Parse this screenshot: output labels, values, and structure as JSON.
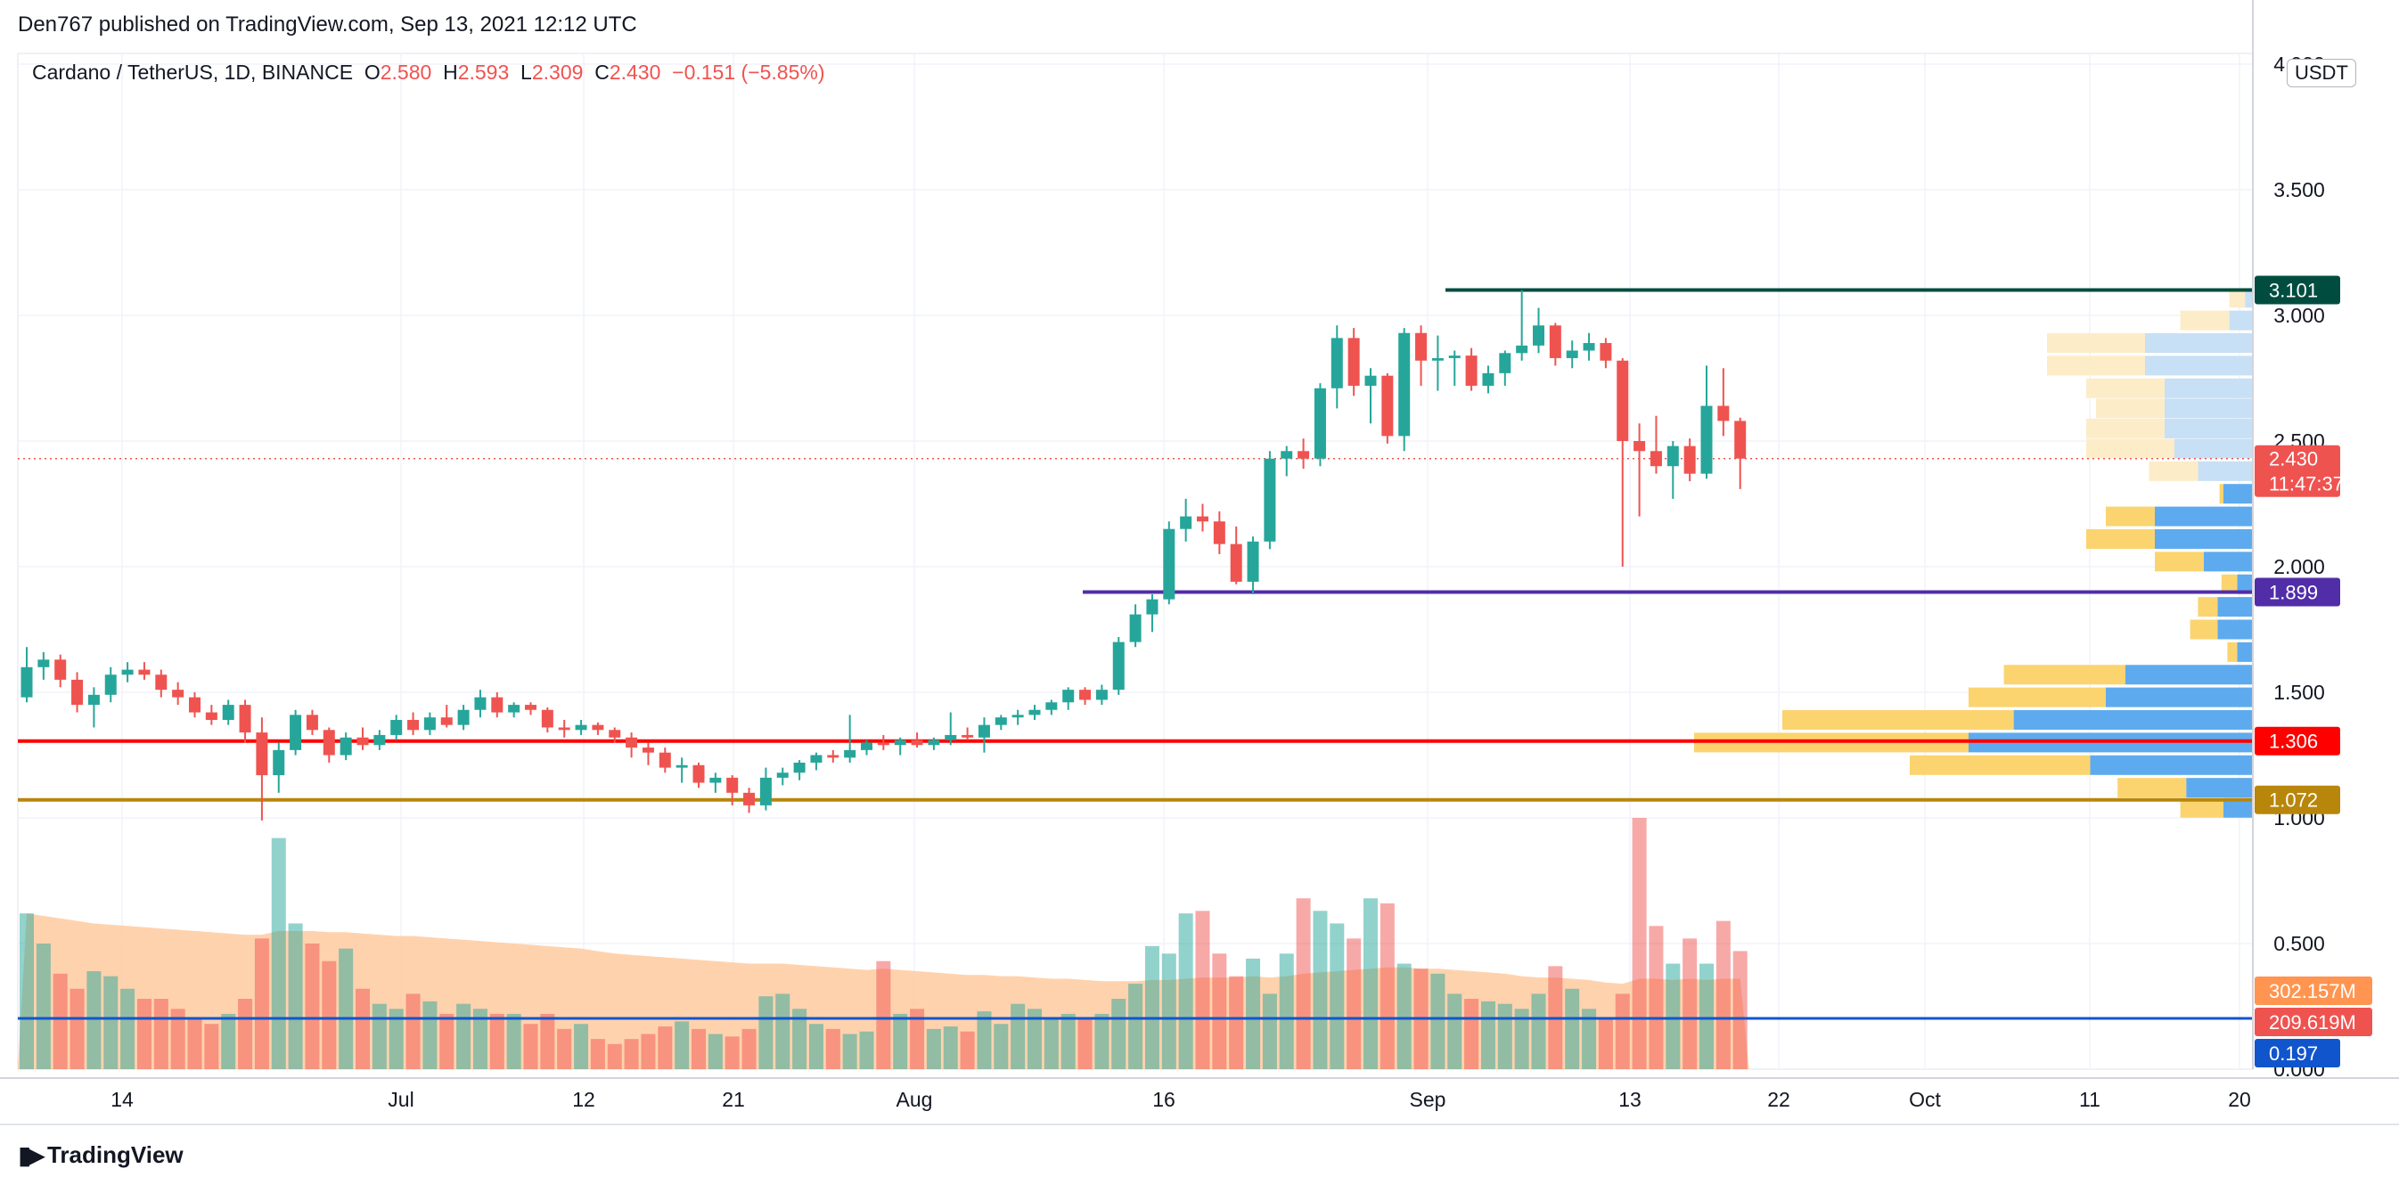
{
  "header": {
    "published": "Den767 published on TradingView.com, Sep 13, 2021 12:12 UTC"
  },
  "legend": {
    "symbol": "Cardano / TetherUS, 1D, BINANCE",
    "o_label": "O",
    "o": "2.580",
    "h_label": "H",
    "h": "2.593",
    "l_label": "L",
    "l": "2.309",
    "c_label": "C",
    "c": "2.430",
    "change": "−0.151 (−5.85%)"
  },
  "currency": "USDT",
  "footer": {
    "brand": "TradingView",
    "logo_icon": "tradingview-logo-icon"
  },
  "chart_data": {
    "type": "candlestick",
    "y_axis": {
      "ticks": [
        "4.000",
        "3.500",
        "3.000",
        "2.500",
        "2.000",
        "1.500",
        "1.000",
        "0.500",
        "0.000"
      ],
      "ylim": [
        0,
        4.0
      ]
    },
    "x_axis": {
      "ticks": [
        "14",
        "Jul",
        "12",
        "21",
        "Aug",
        "16",
        "Sep",
        "13",
        "22",
        "Oct",
        "11",
        "20"
      ]
    },
    "price_labels": [
      {
        "text": "3.101",
        "color": "#004d40"
      },
      {
        "text": "2.430",
        "sub": "11:47:37",
        "color": "#ef5350"
      },
      {
        "text": "1.899",
        "color": "#512da8"
      },
      {
        "text": "1.306",
        "color": "#ff0000"
      },
      {
        "text": "1.072",
        "color": "#b8860b"
      },
      {
        "text": "302.157M",
        "color": "#ff9550"
      },
      {
        "text": "209.619M",
        "color": "#ef5350"
      },
      {
        "text": "0.197",
        "color": "#1155cc"
      }
    ],
    "levels": [
      {
        "value": 3.101,
        "color": "#004d40",
        "start": "Sep 2"
      },
      {
        "value": 1.899,
        "color": "#512da8",
        "start": "Aug 10"
      },
      {
        "value": 1.306,
        "color": "#ff0000"
      },
      {
        "value": 1.072,
        "color": "#b8860b"
      },
      {
        "value": 0.197,
        "color": "#1155cc"
      }
    ],
    "last_price": 2.43,
    "candles": [
      {
        "o": 1.48,
        "h": 1.68,
        "l": 1.46,
        "c": 1.6
      },
      {
        "o": 1.6,
        "h": 1.66,
        "l": 1.55,
        "c": 1.63
      },
      {
        "o": 1.63,
        "h": 1.65,
        "l": 1.52,
        "c": 1.55
      },
      {
        "o": 1.55,
        "h": 1.58,
        "l": 1.42,
        "c": 1.45
      },
      {
        "o": 1.45,
        "h": 1.52,
        "l": 1.36,
        "c": 1.49
      },
      {
        "o": 1.49,
        "h": 1.6,
        "l": 1.46,
        "c": 1.57
      },
      {
        "o": 1.57,
        "h": 1.62,
        "l": 1.54,
        "c": 1.59
      },
      {
        "o": 1.59,
        "h": 1.62,
        "l": 1.55,
        "c": 1.57
      },
      {
        "o": 1.57,
        "h": 1.59,
        "l": 1.48,
        "c": 1.51
      },
      {
        "o": 1.51,
        "h": 1.54,
        "l": 1.45,
        "c": 1.48
      },
      {
        "o": 1.48,
        "h": 1.5,
        "l": 1.4,
        "c": 1.42
      },
      {
        "o": 1.42,
        "h": 1.45,
        "l": 1.37,
        "c": 1.39
      },
      {
        "o": 1.39,
        "h": 1.47,
        "l": 1.37,
        "c": 1.45
      },
      {
        "o": 1.45,
        "h": 1.47,
        "l": 1.3,
        "c": 1.34
      },
      {
        "o": 1.34,
        "h": 1.4,
        "l": 0.99,
        "c": 1.17
      },
      {
        "o": 1.17,
        "h": 1.3,
        "l": 1.1,
        "c": 1.27
      },
      {
        "o": 1.27,
        "h": 1.43,
        "l": 1.25,
        "c": 1.41
      },
      {
        "o": 1.41,
        "h": 1.43,
        "l": 1.33,
        "c": 1.35
      },
      {
        "o": 1.35,
        "h": 1.36,
        "l": 1.22,
        "c": 1.25
      },
      {
        "o": 1.25,
        "h": 1.34,
        "l": 1.23,
        "c": 1.32
      },
      {
        "o": 1.32,
        "h": 1.36,
        "l": 1.27,
        "c": 1.29
      },
      {
        "o": 1.29,
        "h": 1.35,
        "l": 1.27,
        "c": 1.33
      },
      {
        "o": 1.33,
        "h": 1.41,
        "l": 1.31,
        "c": 1.39
      },
      {
        "o": 1.39,
        "h": 1.42,
        "l": 1.33,
        "c": 1.35
      },
      {
        "o": 1.35,
        "h": 1.42,
        "l": 1.33,
        "c": 1.4
      },
      {
        "o": 1.4,
        "h": 1.45,
        "l": 1.36,
        "c": 1.37
      },
      {
        "o": 1.37,
        "h": 1.45,
        "l": 1.35,
        "c": 1.43
      },
      {
        "o": 1.43,
        "h": 1.51,
        "l": 1.4,
        "c": 1.48
      },
      {
        "o": 1.48,
        "h": 1.5,
        "l": 1.4,
        "c": 1.42
      },
      {
        "o": 1.42,
        "h": 1.46,
        "l": 1.4,
        "c": 1.45
      },
      {
        "o": 1.45,
        "h": 1.46,
        "l": 1.41,
        "c": 1.43
      },
      {
        "o": 1.43,
        "h": 1.44,
        "l": 1.34,
        "c": 1.36
      },
      {
        "o": 1.36,
        "h": 1.39,
        "l": 1.32,
        "c": 1.35
      },
      {
        "o": 1.35,
        "h": 1.39,
        "l": 1.33,
        "c": 1.37
      },
      {
        "o": 1.37,
        "h": 1.38,
        "l": 1.33,
        "c": 1.35
      },
      {
        "o": 1.35,
        "h": 1.36,
        "l": 1.3,
        "c": 1.32
      },
      {
        "o": 1.32,
        "h": 1.34,
        "l": 1.24,
        "c": 1.28
      },
      {
        "o": 1.28,
        "h": 1.3,
        "l": 1.21,
        "c": 1.26
      },
      {
        "o": 1.26,
        "h": 1.28,
        "l": 1.18,
        "c": 1.2
      },
      {
        "o": 1.2,
        "h": 1.24,
        "l": 1.14,
        "c": 1.21
      },
      {
        "o": 1.21,
        "h": 1.22,
        "l": 1.12,
        "c": 1.14
      },
      {
        "o": 1.14,
        "h": 1.18,
        "l": 1.1,
        "c": 1.16
      },
      {
        "o": 1.16,
        "h": 1.17,
        "l": 1.05,
        "c": 1.1
      },
      {
        "o": 1.1,
        "h": 1.12,
        "l": 1.02,
        "c": 1.05
      },
      {
        "o": 1.05,
        "h": 1.2,
        "l": 1.03,
        "c": 1.16
      },
      {
        "o": 1.16,
        "h": 1.2,
        "l": 1.13,
        "c": 1.18
      },
      {
        "o": 1.18,
        "h": 1.23,
        "l": 1.15,
        "c": 1.22
      },
      {
        "o": 1.22,
        "h": 1.26,
        "l": 1.19,
        "c": 1.25
      },
      {
        "o": 1.25,
        "h": 1.27,
        "l": 1.22,
        "c": 1.24
      },
      {
        "o": 1.24,
        "h": 1.41,
        "l": 1.22,
        "c": 1.27
      },
      {
        "o": 1.27,
        "h": 1.31,
        "l": 1.25,
        "c": 1.3
      },
      {
        "o": 1.3,
        "h": 1.33,
        "l": 1.27,
        "c": 1.29
      },
      {
        "o": 1.29,
        "h": 1.32,
        "l": 1.25,
        "c": 1.31
      },
      {
        "o": 1.31,
        "h": 1.34,
        "l": 1.28,
        "c": 1.29
      },
      {
        "o": 1.29,
        "h": 1.32,
        "l": 1.27,
        "c": 1.31
      },
      {
        "o": 1.31,
        "h": 1.42,
        "l": 1.29,
        "c": 1.33
      },
      {
        "o": 1.33,
        "h": 1.36,
        "l": 1.31,
        "c": 1.32
      },
      {
        "o": 1.32,
        "h": 1.4,
        "l": 1.26,
        "c": 1.37
      },
      {
        "o": 1.37,
        "h": 1.41,
        "l": 1.35,
        "c": 1.4
      },
      {
        "o": 1.4,
        "h": 1.43,
        "l": 1.37,
        "c": 1.41
      },
      {
        "o": 1.41,
        "h": 1.45,
        "l": 1.39,
        "c": 1.43
      },
      {
        "o": 1.43,
        "h": 1.47,
        "l": 1.41,
        "c": 1.46
      },
      {
        "o": 1.46,
        "h": 1.52,
        "l": 1.43,
        "c": 1.51
      },
      {
        "o": 1.51,
        "h": 1.52,
        "l": 1.45,
        "c": 1.47
      },
      {
        "o": 1.47,
        "h": 1.53,
        "l": 1.45,
        "c": 1.51
      },
      {
        "o": 1.51,
        "h": 1.72,
        "l": 1.49,
        "c": 1.7
      },
      {
        "o": 1.7,
        "h": 1.85,
        "l": 1.68,
        "c": 1.81
      },
      {
        "o": 1.81,
        "h": 1.89,
        "l": 1.74,
        "c": 1.87
      },
      {
        "o": 1.87,
        "h": 2.18,
        "l": 1.85,
        "c": 2.15
      },
      {
        "o": 2.15,
        "h": 2.27,
        "l": 2.1,
        "c": 2.2
      },
      {
        "o": 2.2,
        "h": 2.25,
        "l": 2.14,
        "c": 2.18
      },
      {
        "o": 2.18,
        "h": 2.22,
        "l": 2.05,
        "c": 2.09
      },
      {
        "o": 2.09,
        "h": 2.16,
        "l": 1.93,
        "c": 1.94
      },
      {
        "o": 1.94,
        "h": 2.12,
        "l": 1.89,
        "c": 2.1
      },
      {
        "o": 2.1,
        "h": 2.46,
        "l": 2.07,
        "c": 2.43
      },
      {
        "o": 2.43,
        "h": 2.48,
        "l": 2.36,
        "c": 2.46
      },
      {
        "o": 2.46,
        "h": 2.51,
        "l": 2.39,
        "c": 2.43
      },
      {
        "o": 2.43,
        "h": 2.73,
        "l": 2.4,
        "c": 2.71
      },
      {
        "o": 2.71,
        "h": 2.96,
        "l": 2.63,
        "c": 2.91
      },
      {
        "o": 2.91,
        "h": 2.95,
        "l": 2.68,
        "c": 2.72
      },
      {
        "o": 2.72,
        "h": 2.79,
        "l": 2.57,
        "c": 2.76
      },
      {
        "o": 2.76,
        "h": 2.77,
        "l": 2.49,
        "c": 2.52
      },
      {
        "o": 2.52,
        "h": 2.95,
        "l": 2.46,
        "c": 2.93
      },
      {
        "o": 2.93,
        "h": 2.96,
        "l": 2.72,
        "c": 2.82
      },
      {
        "o": 2.82,
        "h": 2.92,
        "l": 2.7,
        "c": 2.83
      },
      {
        "o": 2.83,
        "h": 2.86,
        "l": 2.72,
        "c": 2.84
      },
      {
        "o": 2.84,
        "h": 2.87,
        "l": 2.7,
        "c": 2.72
      },
      {
        "o": 2.72,
        "h": 2.8,
        "l": 2.69,
        "c": 2.77
      },
      {
        "o": 2.77,
        "h": 2.86,
        "l": 2.72,
        "c": 2.85
      },
      {
        "o": 2.85,
        "h": 3.1,
        "l": 2.82,
        "c": 2.88
      },
      {
        "o": 2.88,
        "h": 3.03,
        "l": 2.85,
        "c": 2.96
      },
      {
        "o": 2.96,
        "h": 2.97,
        "l": 2.8,
        "c": 2.83
      },
      {
        "o": 2.83,
        "h": 2.9,
        "l": 2.79,
        "c": 2.86
      },
      {
        "o": 2.86,
        "h": 2.93,
        "l": 2.82,
        "c": 2.89
      },
      {
        "o": 2.89,
        "h": 2.91,
        "l": 2.79,
        "c": 2.82
      },
      {
        "o": 2.82,
        "h": 2.83,
        "l": 2.0,
        "c": 2.5
      },
      {
        "o": 2.5,
        "h": 2.57,
        "l": 2.2,
        "c": 2.46
      },
      {
        "o": 2.46,
        "h": 2.6,
        "l": 2.37,
        "c": 2.4
      },
      {
        "o": 2.4,
        "h": 2.5,
        "l": 2.27,
        "c": 2.48
      },
      {
        "o": 2.48,
        "h": 2.51,
        "l": 2.34,
        "c": 2.37
      },
      {
        "o": 2.37,
        "h": 2.8,
        "l": 2.35,
        "c": 2.64
      },
      {
        "o": 2.64,
        "h": 2.79,
        "l": 2.52,
        "c": 2.58
      },
      {
        "o": 2.58,
        "h": 2.593,
        "l": 2.309,
        "c": 2.43
      }
    ],
    "volume": {
      "ylim": [
        0,
        1.0
      ],
      "values": [
        0.62,
        0.5,
        0.38,
        0.32,
        0.39,
        0.37,
        0.32,
        0.28,
        0.28,
        0.24,
        0.2,
        0.18,
        0.22,
        0.28,
        0.52,
        0.92,
        0.58,
        0.5,
        0.43,
        0.48,
        0.32,
        0.26,
        0.24,
        0.3,
        0.27,
        0.22,
        0.26,
        0.24,
        0.22,
        0.22,
        0.18,
        0.22,
        0.16,
        0.18,
        0.12,
        0.1,
        0.12,
        0.14,
        0.17,
        0.19,
        0.16,
        0.14,
        0.13,
        0.16,
        0.29,
        0.3,
        0.24,
        0.18,
        0.16,
        0.14,
        0.15,
        0.43,
        0.22,
        0.24,
        0.16,
        0.17,
        0.15,
        0.23,
        0.18,
        0.26,
        0.24,
        0.2,
        0.22,
        0.2,
        0.22,
        0.28,
        0.34,
        0.49,
        0.46,
        0.62,
        0.63,
        0.46,
        0.37,
        0.44,
        0.3,
        0.46,
        0.68,
        0.63,
        0.58,
        0.52,
        0.68,
        0.66,
        0.42,
        0.4,
        0.38,
        0.3,
        0.28,
        0.27,
        0.26,
        0.24,
        0.3,
        0.41,
        0.32,
        0.24,
        0.2,
        0.3,
        1.0,
        0.57,
        0.42,
        0.52,
        0.42,
        0.59,
        0.47
      ],
      "ma": [
        0.62,
        0.61,
        0.6,
        0.59,
        0.58,
        0.575,
        0.57,
        0.565,
        0.56,
        0.555,
        0.55,
        0.545,
        0.54,
        0.535,
        0.535,
        0.55,
        0.55,
        0.55,
        0.545,
        0.545,
        0.54,
        0.535,
        0.53,
        0.53,
        0.525,
        0.52,
        0.515,
        0.51,
        0.505,
        0.5,
        0.495,
        0.49,
        0.485,
        0.48,
        0.47,
        0.46,
        0.455,
        0.45,
        0.445,
        0.44,
        0.435,
        0.43,
        0.425,
        0.42,
        0.42,
        0.42,
        0.415,
        0.41,
        0.405,
        0.4,
        0.395,
        0.4,
        0.395,
        0.39,
        0.385,
        0.38,
        0.375,
        0.375,
        0.37,
        0.37,
        0.365,
        0.36,
        0.36,
        0.355,
        0.35,
        0.35,
        0.35,
        0.355,
        0.355,
        0.36,
        0.365,
        0.365,
        0.365,
        0.37,
        0.365,
        0.37,
        0.38,
        0.385,
        0.39,
        0.395,
        0.4,
        0.405,
        0.405,
        0.4,
        0.4,
        0.395,
        0.39,
        0.385,
        0.38,
        0.37,
        0.365,
        0.365,
        0.36,
        0.355,
        0.345,
        0.34,
        0.36,
        0.36,
        0.355,
        0.36,
        0.355,
        0.36,
        0.36
      ]
    },
    "volume_profile": [
      {
        "price": 3.07,
        "up": 0.08,
        "down": 0.04
      },
      {
        "price": 2.98,
        "up": 0.25,
        "down": 0.12
      },
      {
        "price": 2.89,
        "up": 0.5,
        "down": 0.55
      },
      {
        "price": 2.8,
        "up": 0.5,
        "down": 0.55
      },
      {
        "price": 2.71,
        "up": 0.4,
        "down": 0.45
      },
      {
        "price": 2.63,
        "up": 0.35,
        "down": 0.45
      },
      {
        "price": 2.55,
        "up": 0.4,
        "down": 0.45
      },
      {
        "price": 2.47,
        "up": 0.45,
        "down": 0.4
      },
      {
        "price": 2.38,
        "up": 0.25,
        "down": 0.28
      },
      {
        "price": 2.29,
        "up": 0.02,
        "down": 0.15
      },
      {
        "price": 2.2,
        "up": 0.25,
        "down": 0.5
      },
      {
        "price": 2.11,
        "up": 0.35,
        "down": 0.5
      },
      {
        "price": 2.02,
        "up": 0.25,
        "down": 0.25
      },
      {
        "price": 1.93,
        "up": 0.08,
        "down": 0.08
      },
      {
        "price": 1.84,
        "up": 0.1,
        "down": 0.18
      },
      {
        "price": 1.75,
        "up": 0.14,
        "down": 0.18
      },
      {
        "price": 1.66,
        "up": 0.05,
        "down": 0.08
      },
      {
        "price": 1.57,
        "up": 0.62,
        "down": 0.65
      },
      {
        "price": 1.48,
        "up": 0.7,
        "down": 0.75
      },
      {
        "price": 1.39,
        "up": 1.18,
        "down": 1.22
      },
      {
        "price": 1.3,
        "up": 1.4,
        "down": 1.45
      },
      {
        "price": 1.21,
        "up": 0.92,
        "down": 0.83
      },
      {
        "price": 1.12,
        "up": 0.35,
        "down": 0.34
      },
      {
        "price": 1.04,
        "up": 0.22,
        "down": 0.15
      }
    ]
  }
}
